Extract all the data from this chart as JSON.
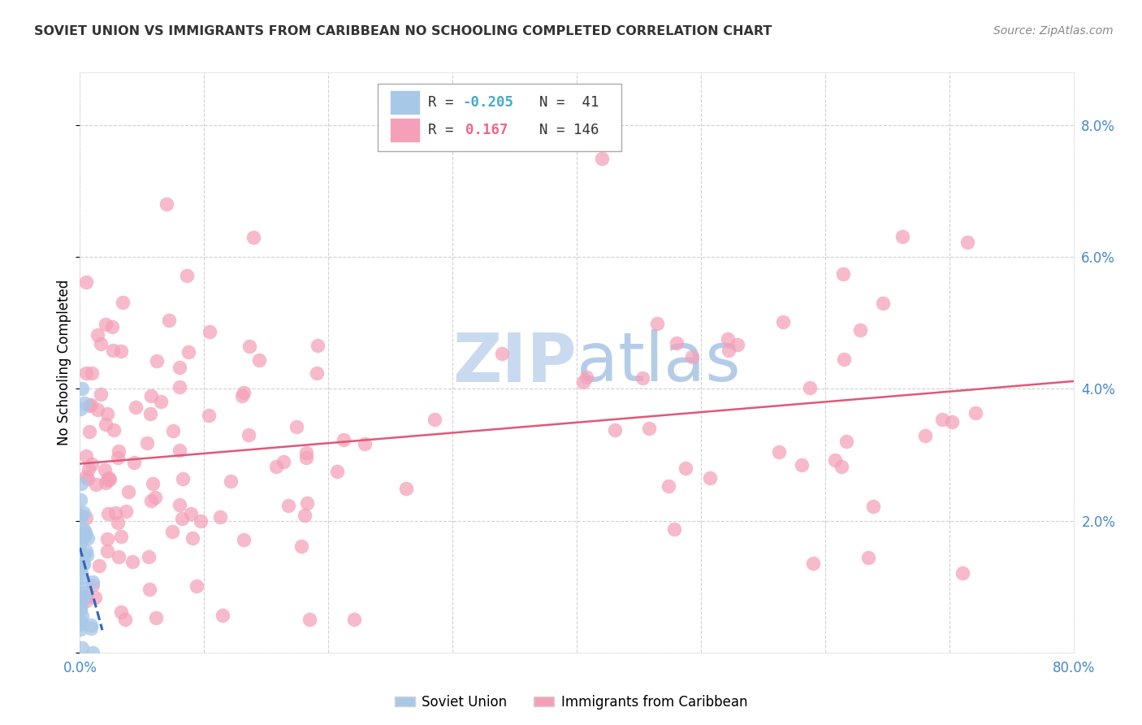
{
  "title": "SOVIET UNION VS IMMIGRANTS FROM CARIBBEAN NO SCHOOLING COMPLETED CORRELATION CHART",
  "source": "Source: ZipAtlas.com",
  "ylabel": "No Schooling Completed",
  "xlim": [
    0.0,
    0.8
  ],
  "ylim": [
    0.0,
    0.088
  ],
  "xticks": [
    0.0,
    0.1,
    0.2,
    0.3,
    0.4,
    0.5,
    0.6,
    0.7,
    0.8
  ],
  "xticklabels": [
    "0.0%",
    "",
    "",
    "",
    "",
    "",
    "",
    "",
    "80.0%"
  ],
  "yticks": [
    0.0,
    0.02,
    0.04,
    0.06,
    0.08
  ],
  "yticklabels_right": [
    "",
    "2.0%",
    "4.0%",
    "6.0%",
    "8.0%"
  ],
  "color_soviet": "#a8c8e8",
  "color_caribbean": "#f4a0b8",
  "color_trendline_soviet": "#3366bb",
  "color_trendline_caribbean": "#e05878",
  "color_axis_text": "#4488cc",
  "color_grid": "#cccccc",
  "color_title": "#333333",
  "color_source": "#888888",
  "color_watermark_zip": "#c8d8f0",
  "color_watermark_atlas": "#b8cce8",
  "legend_text1": "R = -0.205   N =  41",
  "legend_text2": "R =   0.167   N = 146",
  "legend_color_r1": "#44aacc",
  "legend_color_r2": "#ee6688",
  "bottom_legend_soviet": "Soviet Union",
  "bottom_legend_caribbean": "Immigrants from Caribbean",
  "seed": 42
}
